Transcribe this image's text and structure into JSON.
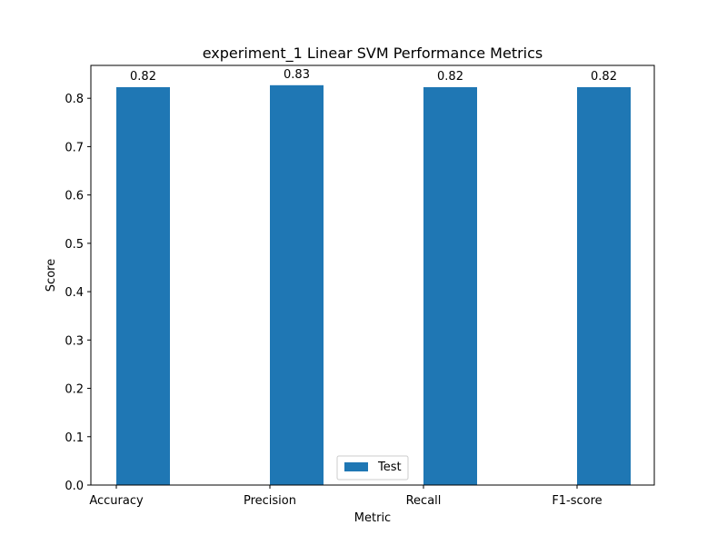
{
  "chart_data": {
    "type": "bar",
    "title": "experiment_1 Linear SVM Performance Metrics",
    "xlabel": "Metric",
    "ylabel": "Score",
    "categories": [
      "Accuracy",
      "Precision",
      "Recall",
      "F1-score"
    ],
    "series": [
      {
        "name": "Test",
        "values": [
          0.823,
          0.827,
          0.823,
          0.823
        ],
        "labels": [
          "0.82",
          "0.83",
          "0.82",
          "0.82"
        ],
        "color": "#1f77b4"
      }
    ],
    "yticks": [
      "0.0",
      "0.1",
      "0.2",
      "0.3",
      "0.4",
      "0.5",
      "0.6",
      "0.7",
      "0.8"
    ],
    "ylim": [
      0,
      0.868
    ],
    "grid": false,
    "legend_position": "lower-center"
  }
}
